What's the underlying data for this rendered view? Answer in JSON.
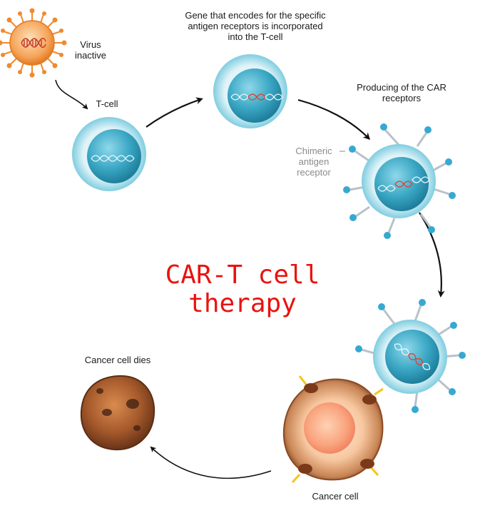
{
  "labels": {
    "virus": "Virus inactive",
    "tcell": "T-cell",
    "gene": "Gene that encodes for the specific antigen receptors is incorporated into the T-cell",
    "producing": "Producing of the CAR receptors",
    "chimeric": "Chimeric antigen receptor",
    "cancer_dies": "Cancer cell dies",
    "cancer_cell": "Cancer cell"
  },
  "title": "CAR-T cell therapy",
  "colors": {
    "title": "#e8130f",
    "cell_fill": "#6fc8dd",
    "nucleus": "#2d98b3",
    "receptor": "#36a9d2",
    "virus": "#f08a2e",
    "cancer": "#a0522d",
    "antigen": "#f5c518"
  }
}
